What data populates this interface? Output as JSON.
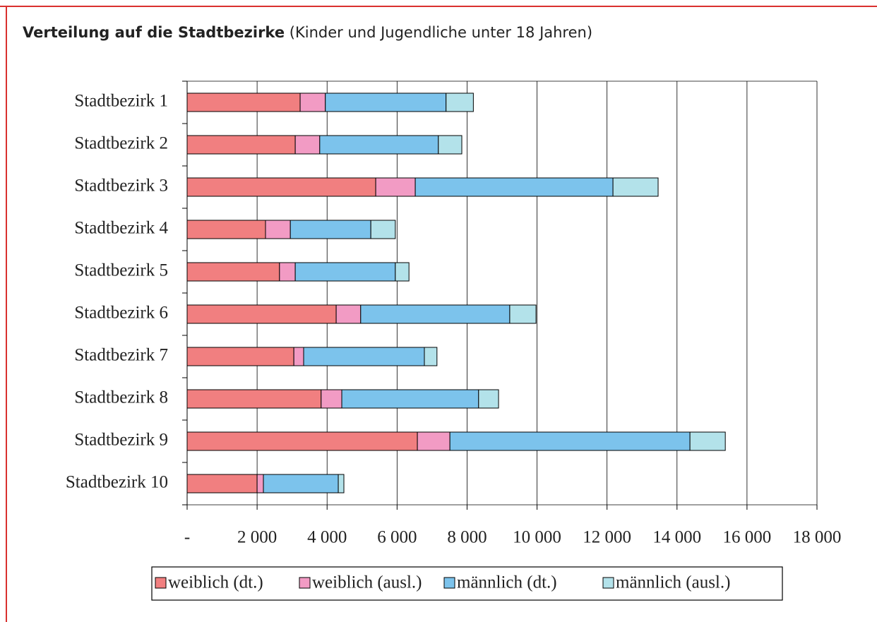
{
  "chart_data": {
    "type": "stacked-bar-horizontal",
    "title": "Verteilung auf die Stadtbezirke",
    "subtitle": "(Kinder und Jugendliche unter 18 Jahren)",
    "categories": [
      "Stadtbezirk 1",
      "Stadtbezirk 2",
      "Stadtbezirk 3",
      "Stadtbezirk 4",
      "Stadtbezirk 5",
      "Stadtbezirk 6",
      "Stadtbezirk 7",
      "Stadtbezirk 8",
      "Stadtbezirk 9",
      "Stadtbezirk 10"
    ],
    "series": [
      {
        "name": "weiblich (dt.)",
        "color": "#f17f80",
        "values": [
          3230,
          3090,
          5390,
          2240,
          2640,
          4260,
          3050,
          3830,
          6580,
          2000
        ]
      },
      {
        "name": "weiblich (ausl.)",
        "color": "#f29bc4",
        "values": [
          720,
          700,
          1130,
          710,
          450,
          700,
          280,
          590,
          930,
          180
        ]
      },
      {
        "name": "männlich (dt.)",
        "color": "#7cc3ec",
        "values": [
          3450,
          3390,
          5650,
          2300,
          2860,
          4260,
          3450,
          3910,
          6860,
          2140
        ]
      },
      {
        "name": "männlich (ausl.)",
        "color": "#b3e2ea",
        "values": [
          780,
          670,
          1290,
          700,
          390,
          750,
          360,
          570,
          1010,
          160
        ]
      }
    ],
    "xlim": [
      0,
      18000
    ],
    "xticks": [
      {
        "value": 0,
        "label": "-"
      },
      {
        "value": 2000,
        "label": "2 000"
      },
      {
        "value": 4000,
        "label": "4 000"
      },
      {
        "value": 6000,
        "label": "6 000"
      },
      {
        "value": 8000,
        "label": "8 000"
      },
      {
        "value": 10000,
        "label": "10 000"
      },
      {
        "value": 12000,
        "label": "12 000"
      },
      {
        "value": 14000,
        "label": "14 000"
      },
      {
        "value": 16000,
        "label": "16 000"
      },
      {
        "value": 18000,
        "label": "18 000"
      }
    ],
    "grid": true,
    "legend": "bottom"
  }
}
